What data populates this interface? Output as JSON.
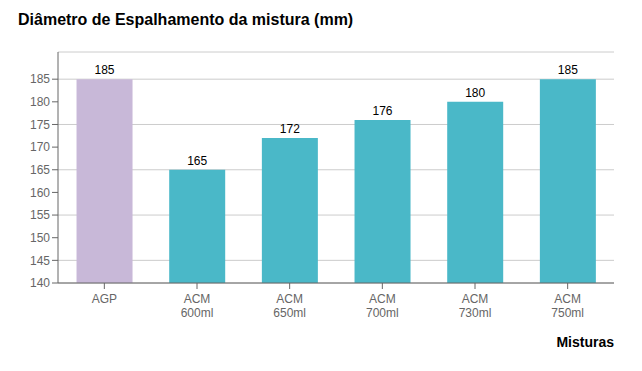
{
  "chart_data": {
    "type": "bar",
    "title": "Diâmetro de Espalhamento da mistura (mm)",
    "xlabel": "Misturas",
    "categories": [
      "AGP",
      "ACM\n600ml",
      "ACM\n650ml",
      "ACM\n700ml",
      "ACM\n730ml",
      "ACM\n750ml"
    ],
    "values": [
      185,
      165,
      172,
      176,
      180,
      185
    ],
    "colors": [
      "#c8b8d8",
      "#4ab8c8",
      "#4ab8c8",
      "#4ab8c8",
      "#4ab8c8",
      "#4ab8c8"
    ],
    "ylim": [
      140,
      191
    ],
    "yticks": [
      140,
      145,
      150,
      155,
      160,
      165,
      170,
      175,
      180,
      185
    ],
    "grid": true,
    "data_labels": true
  }
}
